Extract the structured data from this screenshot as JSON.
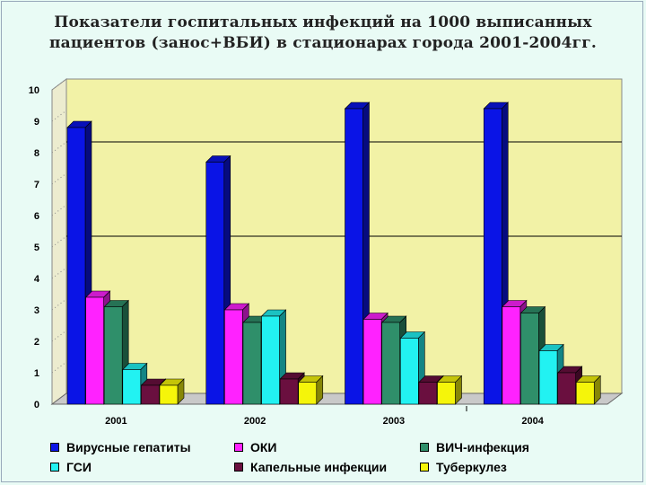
{
  "colors": {
    "background": "#e9fbf5",
    "plot_area": "#f2f2a6",
    "series": [
      "#0a14e6",
      "#ff22ff",
      "#2f8f6a",
      "#22f2f2",
      "#6a0f3f",
      "#f5f50a"
    ]
  },
  "chart_data": {
    "type": "bar",
    "title_lines": [
      "Показатели госпитальных инфекций на 1000 выписанных",
      "пациентов (занос+ВБИ) в стационарах города 2001-2004гг."
    ],
    "categories": [
      "2001",
      "2002",
      "2003",
      "2004"
    ],
    "y_ticks": [
      "0",
      "1",
      "2",
      "3",
      "4",
      "5",
      "6",
      "7",
      "8",
      "9",
      "10"
    ],
    "ylim": [
      0,
      10
    ],
    "gridlines": [
      5,
      8
    ],
    "legend_position": "bottom",
    "series": [
      {
        "name": "Вирусные гепатиты",
        "values": [
          8.8,
          7.7,
          9.4,
          9.4
        ]
      },
      {
        "name": "ОКИ",
        "values": [
          3.4,
          3.0,
          2.7,
          3.1
        ]
      },
      {
        "name": "ВИЧ-инфекция",
        "values": [
          3.1,
          2.6,
          2.6,
          2.9
        ]
      },
      {
        "name": "ГСИ",
        "values": [
          1.1,
          2.8,
          2.1,
          1.7
        ]
      },
      {
        "name": "Капельные инфекции",
        "values": [
          0.6,
          0.8,
          0.7,
          1.0
        ]
      },
      {
        "name": "Туберкулез",
        "values": [
          0.6,
          0.7,
          0.7,
          0.7
        ]
      }
    ]
  }
}
